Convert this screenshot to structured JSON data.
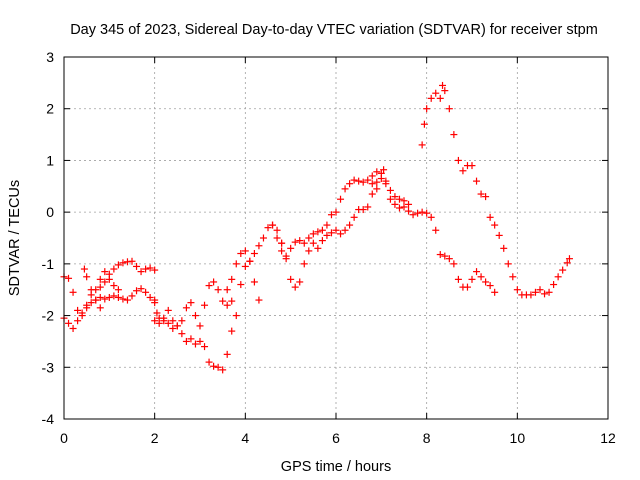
{
  "chart_data": {
    "type": "scatter",
    "title": "Day 345 of 2023, Sidereal Day-to-day VTEC variation (SDTVAR) for receiver stpm",
    "xlabel": "GPS time / hours",
    "ylabel": "SDTVAR / TECUs",
    "xlim": [
      0,
      12
    ],
    "ylim": [
      -4,
      3
    ],
    "xticks": [
      "0",
      "2",
      "4",
      "6",
      "8",
      "10",
      "12"
    ],
    "yticks": [
      "3",
      "2",
      "1",
      "0",
      "-1",
      "-2",
      "-3",
      "-4"
    ],
    "grid": true,
    "marker": "+",
    "series": [
      {
        "name": "SDTVAR",
        "color": "#ff0000",
        "points": [
          [
            0.0,
            -1.25
          ],
          [
            0.1,
            -1.28
          ],
          [
            0.2,
            -1.55
          ],
          [
            0.3,
            -1.9
          ],
          [
            0.4,
            -2.0
          ],
          [
            0.5,
            -1.8
          ],
          [
            0.6,
            -1.6
          ],
          [
            0.7,
            -1.5
          ],
          [
            0.8,
            -1.45
          ],
          [
            0.9,
            -1.35
          ],
          [
            1.0,
            -1.2
          ],
          [
            1.1,
            -1.1
          ],
          [
            1.2,
            -1.02
          ],
          [
            1.3,
            -0.98
          ],
          [
            1.4,
            -0.96
          ],
          [
            1.5,
            -0.95
          ],
          [
            1.6,
            -1.05
          ],
          [
            1.7,
            -1.15
          ],
          [
            1.8,
            -1.1
          ],
          [
            1.9,
            -1.08
          ],
          [
            2.0,
            -1.12
          ],
          [
            0.0,
            -2.05
          ],
          [
            0.1,
            -2.15
          ],
          [
            0.2,
            -2.25
          ],
          [
            0.3,
            -2.1
          ],
          [
            0.4,
            -1.95
          ],
          [
            0.5,
            -1.85
          ],
          [
            0.6,
            -1.75
          ],
          [
            0.7,
            -1.7
          ],
          [
            0.8,
            -1.65
          ],
          [
            0.9,
            -1.68
          ],
          [
            1.0,
            -1.65
          ],
          [
            1.1,
            -1.62
          ],
          [
            1.2,
            -1.65
          ],
          [
            1.3,
            -1.68
          ],
          [
            1.4,
            -1.7
          ],
          [
            1.5,
            -1.62
          ],
          [
            1.6,
            -1.52
          ],
          [
            1.7,
            -1.48
          ],
          [
            1.8,
            -1.55
          ],
          [
            1.9,
            -1.65
          ],
          [
            2.0,
            -1.7
          ],
          [
            0.45,
            -1.1
          ],
          [
            0.5,
            -1.25
          ],
          [
            0.6,
            -1.5
          ],
          [
            0.7,
            -1.7
          ],
          [
            0.8,
            -1.85
          ],
          [
            0.8,
            -1.3
          ],
          [
            0.9,
            -1.15
          ],
          [
            1.0,
            -1.3
          ],
          [
            1.1,
            -1.42
          ],
          [
            1.2,
            -1.5
          ],
          [
            2.0,
            -1.75
          ],
          [
            2.05,
            -1.95
          ],
          [
            2.1,
            -2.15
          ],
          [
            2.2,
            -2.05
          ],
          [
            2.3,
            -1.9
          ],
          [
            2.4,
            -2.1
          ],
          [
            2.5,
            -2.2
          ],
          [
            2.6,
            -2.1
          ],
          [
            2.7,
            -1.85
          ],
          [
            2.8,
            -1.75
          ],
          [
            2.9,
            -2.0
          ],
          [
            3.0,
            -2.2
          ],
          [
            3.1,
            -1.8
          ],
          [
            3.2,
            -1.42
          ],
          [
            3.3,
            -1.35
          ],
          [
            3.4,
            -1.5
          ],
          [
            3.5,
            -1.72
          ],
          [
            3.6,
            -1.8
          ],
          [
            3.7,
            -1.72
          ],
          [
            2.0,
            -2.1
          ],
          [
            2.1,
            -2.05
          ],
          [
            2.2,
            -2.1
          ],
          [
            2.3,
            -2.15
          ],
          [
            2.4,
            -2.25
          ],
          [
            2.5,
            -2.2
          ],
          [
            2.6,
            -2.35
          ],
          [
            2.7,
            -2.5
          ],
          [
            2.8,
            -2.45
          ],
          [
            2.9,
            -2.55
          ],
          [
            3.0,
            -2.5
          ],
          [
            3.1,
            -2.6
          ],
          [
            3.2,
            -2.9
          ],
          [
            3.3,
            -2.98
          ],
          [
            3.4,
            -3.0
          ],
          [
            3.5,
            -3.05
          ],
          [
            3.6,
            -2.75
          ],
          [
            3.7,
            -2.3
          ],
          [
            3.8,
            -2.0
          ],
          [
            3.9,
            -1.4
          ],
          [
            4.0,
            -1.05
          ],
          [
            4.1,
            -0.95
          ],
          [
            4.2,
            -0.8
          ],
          [
            4.3,
            -0.65
          ],
          [
            4.4,
            -0.5
          ],
          [
            4.5,
            -0.3
          ],
          [
            4.6,
            -0.25
          ],
          [
            4.7,
            -0.5
          ],
          [
            4.8,
            -0.75
          ],
          [
            3.6,
            -1.5
          ],
          [
            3.7,
            -1.3
          ],
          [
            3.8,
            -1.0
          ],
          [
            3.9,
            -0.8
          ],
          [
            4.0,
            -0.75
          ],
          [
            4.1,
            -0.95
          ],
          [
            4.2,
            -1.35
          ],
          [
            4.3,
            -1.7
          ],
          [
            4.6,
            -0.25
          ],
          [
            4.7,
            -0.35
          ],
          [
            4.8,
            -0.6
          ],
          [
            4.9,
            -0.85
          ],
          [
            5.0,
            -0.7
          ],
          [
            5.1,
            -0.58
          ],
          [
            5.2,
            -0.55
          ],
          [
            5.3,
            -0.6
          ],
          [
            5.4,
            -0.5
          ],
          [
            5.5,
            -0.42
          ],
          [
            5.6,
            -0.38
          ],
          [
            5.7,
            -0.35
          ],
          [
            5.8,
            -0.25
          ],
          [
            5.9,
            -0.05
          ],
          [
            6.0,
            0.0
          ],
          [
            6.1,
            0.25
          ],
          [
            6.2,
            0.45
          ],
          [
            6.3,
            0.55
          ],
          [
            6.4,
            0.62
          ],
          [
            6.5,
            0.6
          ],
          [
            6.6,
            0.58
          ],
          [
            6.7,
            0.62
          ],
          [
            6.8,
            0.7
          ],
          [
            6.9,
            0.78
          ],
          [
            4.8,
            -0.6
          ],
          [
            4.9,
            -0.9
          ],
          [
            5.0,
            -1.3
          ],
          [
            5.1,
            -1.45
          ],
          [
            5.2,
            -1.35
          ],
          [
            5.3,
            -1.0
          ],
          [
            5.4,
            -0.75
          ],
          [
            5.5,
            -0.6
          ],
          [
            5.6,
            -0.7
          ],
          [
            5.7,
            -0.55
          ],
          [
            5.8,
            -0.45
          ],
          [
            5.9,
            -0.4
          ],
          [
            6.0,
            -0.35
          ],
          [
            6.1,
            -0.42
          ],
          [
            6.2,
            -0.35
          ],
          [
            6.3,
            -0.25
          ],
          [
            6.4,
            -0.1
          ],
          [
            6.5,
            0.05
          ],
          [
            6.6,
            0.05
          ],
          [
            6.7,
            0.1
          ],
          [
            6.8,
            0.35
          ],
          [
            6.9,
            0.45
          ],
          [
            7.0,
            0.75
          ],
          [
            7.05,
            0.82
          ],
          [
            7.1,
            0.6
          ],
          [
            7.2,
            0.25
          ],
          [
            7.3,
            0.15
          ],
          [
            7.4,
            0.08
          ],
          [
            7.5,
            0.1
          ],
          [
            7.6,
            0.02
          ],
          [
            7.7,
            -0.05
          ],
          [
            7.8,
            -0.02
          ],
          [
            7.9,
            0.0
          ],
          [
            8.0,
            -0.02
          ],
          [
            8.1,
            -0.1
          ],
          [
            8.2,
            -0.35
          ],
          [
            8.3,
            -0.82
          ],
          [
            8.4,
            -0.85
          ],
          [
            8.5,
            -0.9
          ],
          [
            8.6,
            -1.0
          ],
          [
            8.7,
            -1.3
          ],
          [
            8.8,
            -1.45
          ],
          [
            8.9,
            -1.45
          ],
          [
            9.0,
            -1.3
          ],
          [
            9.1,
            -1.15
          ],
          [
            9.2,
            -1.25
          ],
          [
            9.3,
            -1.35
          ],
          [
            9.4,
            -1.42
          ],
          [
            9.5,
            -1.55
          ],
          [
            7.9,
            1.3
          ],
          [
            7.95,
            1.7
          ],
          [
            8.0,
            2.0
          ],
          [
            8.1,
            2.2
          ],
          [
            8.2,
            2.3
          ],
          [
            8.3,
            2.2
          ],
          [
            8.35,
            2.45
          ],
          [
            8.4,
            2.35
          ],
          [
            8.5,
            2.0
          ],
          [
            8.6,
            1.5
          ],
          [
            8.7,
            1.0
          ],
          [
            8.8,
            0.8
          ],
          [
            8.9,
            0.9
          ],
          [
            9.0,
            0.9
          ],
          [
            9.1,
            0.6
          ],
          [
            9.2,
            0.35
          ],
          [
            9.3,
            0.3
          ],
          [
            9.4,
            -0.1
          ],
          [
            9.5,
            -0.25
          ],
          [
            9.6,
            -0.45
          ],
          [
            9.7,
            -0.7
          ],
          [
            9.8,
            -1.0
          ],
          [
            9.9,
            -1.25
          ],
          [
            10.0,
            -1.5
          ],
          [
            10.1,
            -1.6
          ],
          [
            10.2,
            -1.6
          ],
          [
            10.3,
            -1.6
          ],
          [
            10.4,
            -1.55
          ],
          [
            10.5,
            -1.5
          ],
          [
            10.6,
            -1.58
          ],
          [
            10.7,
            -1.55
          ],
          [
            10.8,
            -1.4
          ],
          [
            10.9,
            -1.25
          ],
          [
            11.0,
            -1.12
          ],
          [
            11.1,
            -0.98
          ],
          [
            11.15,
            -0.9
          ],
          [
            6.8,
            0.55
          ],
          [
            6.9,
            0.58
          ],
          [
            7.0,
            0.65
          ],
          [
            7.1,
            0.55
          ],
          [
            7.2,
            0.42
          ],
          [
            7.3,
            0.3
          ],
          [
            7.4,
            0.25
          ],
          [
            7.5,
            0.22
          ],
          [
            7.6,
            0.15
          ]
        ]
      }
    ]
  }
}
